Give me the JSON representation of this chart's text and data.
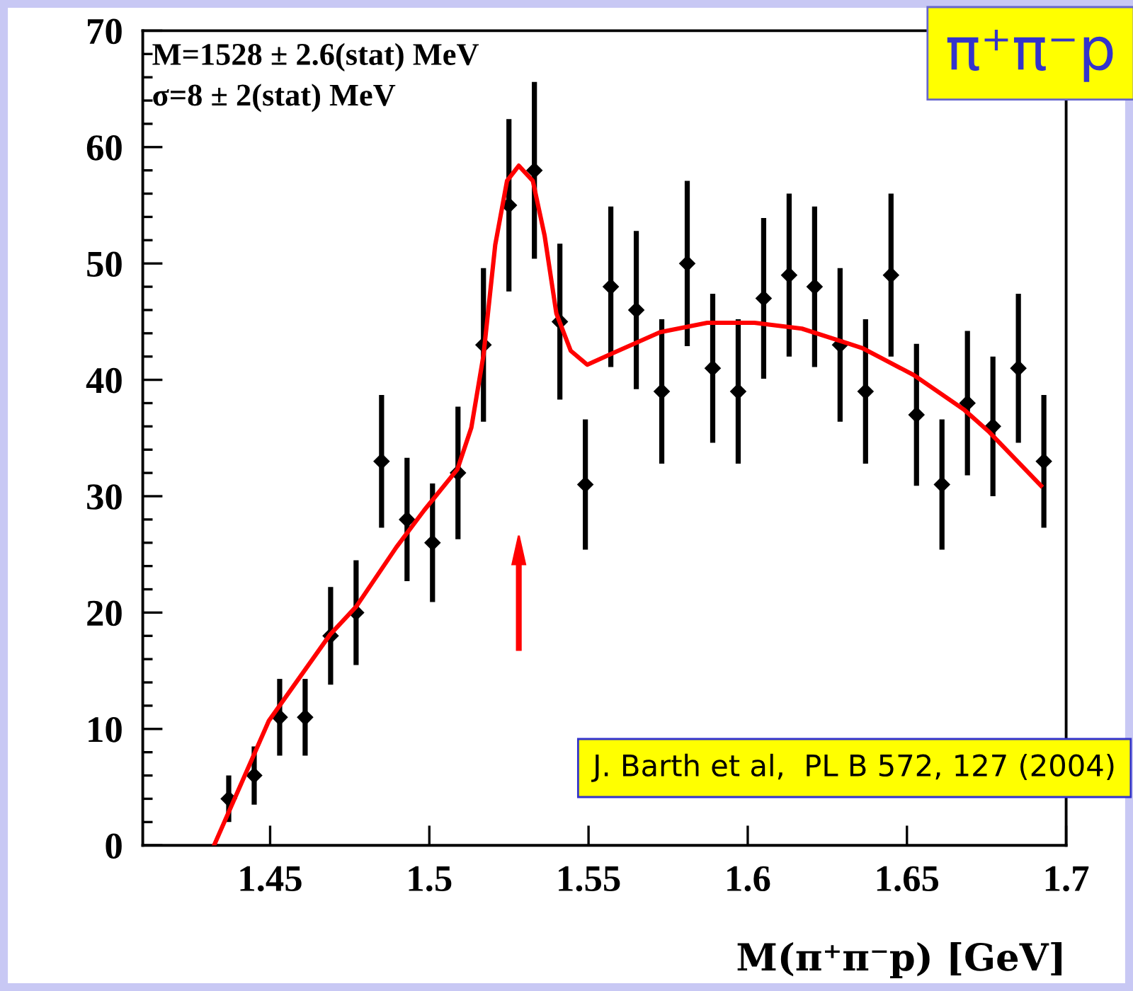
{
  "chart_data": {
    "type": "scatter",
    "xlabel": "M(π⁺π⁻p) [GeV]",
    "annotations": [
      "M=1528 ± 2.6(stat) MeV",
      "σ=8 ± 2(stat) MeV",
      "π⁺π⁻p",
      "J. Barth et al,  PL B 572, 127 (2004)"
    ],
    "xlim": [
      1.41,
      1.7
    ],
    "xticks": [
      1.45,
      1.5,
      1.55,
      1.6,
      1.65,
      1.7
    ],
    "ylim": [
      0,
      70
    ],
    "yticks": [
      0,
      10,
      20,
      30,
      40,
      50,
      60,
      70
    ],
    "grid": false,
    "series": [
      {
        "color": "#000000",
        "marker": "diamond",
        "x": [
          1.437,
          1.445,
          1.453,
          1.461,
          1.469,
          1.477,
          1.485,
          1.493,
          1.501,
          1.509,
          1.517,
          1.525,
          1.533,
          1.541,
          1.549,
          1.557,
          1.565,
          1.573,
          1.581,
          1.589,
          1.597,
          1.605,
          1.613,
          1.621,
          1.629,
          1.637,
          1.645,
          1.653,
          1.661,
          1.669,
          1.677,
          1.685,
          1.693
        ],
        "values": [
          4,
          6,
          11,
          11,
          18,
          20,
          33,
          28,
          26,
          32,
          43,
          55,
          58,
          45,
          31,
          48,
          46,
          39,
          50,
          41,
          39,
          47,
          49,
          48,
          43,
          39,
          49,
          37,
          31,
          38,
          36,
          41,
          33
        ],
        "errors": [
          2,
          2.5,
          3.3,
          3.3,
          4.2,
          4.5,
          5.7,
          5.3,
          5.1,
          5.7,
          6.6,
          7.4,
          7.6,
          6.7,
          5.6,
          6.9,
          6.8,
          6.2,
          7.1,
          6.4,
          6.2,
          6.9,
          7,
          6.9,
          6.6,
          6.2,
          7,
          6.1,
          5.6,
          6.2,
          6,
          6.4,
          5.7
        ]
      },
      {
        "type": "line",
        "color": "#ff0000",
        "line_style": "solid",
        "marker": "none",
        "x": [
          1.4324,
          1.4496,
          1.4688,
          1.477,
          1.4896,
          1.4984,
          1.5088,
          1.5132,
          1.517,
          1.5207,
          1.5244,
          1.5281,
          1.5325,
          1.5362,
          1.5399,
          1.5444,
          1.5496,
          1.5577,
          1.5725,
          1.5873,
          1.6021,
          1.617,
          1.6318,
          1.6362,
          1.6522,
          1.6681,
          1.6759,
          1.6921
        ],
        "values": [
          0,
          10.7,
          18.1,
          20.5,
          25.6,
          28.8,
          32.3,
          35.9,
          42.1,
          51.6,
          57.1,
          58.4,
          57.1,
          52.4,
          45.7,
          42.5,
          41.3,
          42.3,
          44.1,
          44.9,
          44.9,
          44.4,
          43.1,
          42.7,
          40.4,
          37.4,
          35.5,
          30.9
        ]
      }
    ]
  }
}
